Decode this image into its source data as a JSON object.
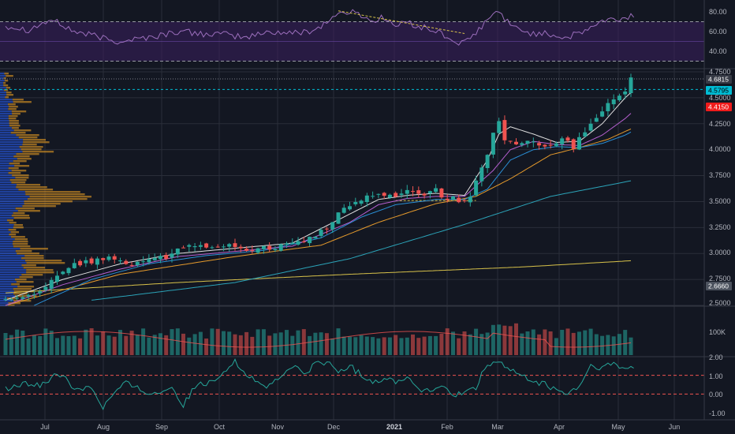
{
  "colors": {
    "background": "#131722",
    "grid": "#2a2e39",
    "up": "#26a69a",
    "down": "#ef5350",
    "rsi_line": "#9c6fbd",
    "rsi_band": "#3b1f5e",
    "profile_blue": "#2962ff",
    "profile_orange": "#f5a623",
    "ma_fast": "#e1e1e1",
    "ma_purple": "#b55fcf",
    "ma_blue": "#2a8fd6",
    "ma_orange": "#e59a2c",
    "ma_teal": "#2ba3b8",
    "ma_yellow": "#d8c24a",
    "osc_line": "#26a69a",
    "level_red": "#ef5350"
  },
  "rsi_panel": {
    "ticks": [
      "80.00",
      "60.00",
      "40.00"
    ],
    "levels": [
      70,
      30
    ]
  },
  "price_axis": {
    "ticks": [
      "4.7500",
      "4.5000",
      "4.2500",
      "4.0000",
      "3.7500",
      "3.5000",
      "3.2500",
      "3.0000",
      "2.7500",
      "2.5000"
    ],
    "badges": [
      {
        "label": "4.6815",
        "color": "#363a45",
        "text_color": "#ffffff"
      },
      {
        "label": "4.5795",
        "color": "#00bcd4",
        "text_color": "#000000"
      },
      {
        "label": "4.4150",
        "color": "#ef1b1b",
        "text_color": "#ffffff"
      },
      {
        "label": "2.6660",
        "color": "#4c525e",
        "text_color": "#ffffff"
      }
    ]
  },
  "volume_panel": {
    "ticks": [
      "100K"
    ]
  },
  "osc_panel": {
    "ticks": [
      "2.00",
      "1.00",
      "0.00",
      "-1.00"
    ],
    "levels": [
      1,
      0
    ]
  },
  "time_axis": {
    "labels": [
      "Jul",
      "Aug",
      "Sep",
      "Oct",
      "Nov",
      "Dec",
      "2021",
      "Feb",
      "Mar",
      "Apr",
      "May",
      "Jun"
    ]
  },
  "chart_data": {
    "type": "candlestick",
    "y_range": [
      2.5,
      4.75
    ],
    "price_path": [
      [
        0,
        2.55
      ],
      [
        4,
        2.6
      ],
      [
        8,
        2.72
      ],
      [
        12,
        2.88
      ],
      [
        16,
        2.93
      ],
      [
        19,
        2.95
      ],
      [
        23,
        2.9
      ],
      [
        27,
        2.95
      ],
      [
        31,
        3.05
      ],
      [
        35,
        3.08
      ],
      [
        39,
        3.08
      ],
      [
        43,
        3.03
      ],
      [
        47,
        3.07
      ],
      [
        51,
        3.1
      ],
      [
        55,
        3.2
      ],
      [
        58,
        3.38
      ],
      [
        61,
        3.48
      ],
      [
        64,
        3.58
      ],
      [
        67,
        3.55
      ],
      [
        69,
        3.55
      ],
      [
        71,
        3.62
      ],
      [
        73,
        3.55
      ],
      [
        75,
        3.62
      ],
      [
        77,
        3.52
      ],
      [
        79,
        3.52
      ],
      [
        81,
        3.55
      ],
      [
        83,
        3.8
      ],
      [
        85,
        4.15
      ],
      [
        86,
        4.3
      ],
      [
        87,
        4.12
      ],
      [
        89,
        4.05
      ],
      [
        91,
        4.1
      ],
      [
        93,
        4.07
      ],
      [
        95,
        4.03
      ],
      [
        97,
        4.12
      ],
      [
        99,
        4.03
      ],
      [
        101,
        4.18
      ],
      [
        103,
        4.3
      ],
      [
        105,
        4.42
      ],
      [
        107,
        4.5
      ],
      [
        108,
        4.58
      ],
      [
        109,
        4.68
      ]
    ],
    "ma_fast_path": [
      [
        0,
        2.55
      ],
      [
        10,
        2.75
      ],
      [
        20,
        2.9
      ],
      [
        30,
        3.0
      ],
      [
        40,
        3.05
      ],
      [
        50,
        3.1
      ],
      [
        60,
        3.38
      ],
      [
        65,
        3.52
      ],
      [
        70,
        3.56
      ],
      [
        75,
        3.58
      ],
      [
        80,
        3.56
      ],
      [
        84,
        3.9
      ],
      [
        86,
        4.15
      ],
      [
        88,
        4.22
      ],
      [
        92,
        4.15
      ],
      [
        96,
        4.07
      ],
      [
        100,
        4.08
      ],
      [
        104,
        4.25
      ],
      [
        108,
        4.5
      ],
      [
        109,
        4.55
      ]
    ],
    "ma_purple_path": [
      [
        0,
        2.5
      ],
      [
        10,
        2.7
      ],
      [
        20,
        2.85
      ],
      [
        30,
        2.97
      ],
      [
        40,
        3.02
      ],
      [
        50,
        3.07
      ],
      [
        60,
        3.3
      ],
      [
        65,
        3.47
      ],
      [
        70,
        3.53
      ],
      [
        75,
        3.55
      ],
      [
        80,
        3.55
      ],
      [
        85,
        3.8
      ],
      [
        88,
        4.0
      ],
      [
        92,
        4.08
      ],
      [
        96,
        4.05
      ],
      [
        100,
        4.04
      ],
      [
        104,
        4.14
      ],
      [
        108,
        4.3
      ],
      [
        109,
        4.35
      ]
    ],
    "ma_blue_path": [
      [
        5,
        2.5
      ],
      [
        15,
        2.75
      ],
      [
        25,
        2.9
      ],
      [
        35,
        2.98
      ],
      [
        45,
        3.03
      ],
      [
        55,
        3.15
      ],
      [
        62,
        3.35
      ],
      [
        68,
        3.47
      ],
      [
        75,
        3.52
      ],
      [
        80,
        3.52
      ],
      [
        84,
        3.62
      ],
      [
        88,
        3.9
      ],
      [
        92,
        4.0
      ],
      [
        96,
        4.03
      ],
      [
        100,
        4.02
      ],
      [
        104,
        4.06
      ],
      [
        108,
        4.14
      ],
      [
        109,
        4.17
      ]
    ],
    "ma_orange_path": [
      [
        0,
        2.5
      ],
      [
        20,
        2.8
      ],
      [
        40,
        2.97
      ],
      [
        55,
        3.08
      ],
      [
        65,
        3.3
      ],
      [
        75,
        3.48
      ],
      [
        82,
        3.55
      ],
      [
        88,
        3.72
      ],
      [
        95,
        3.95
      ],
      [
        100,
        4.02
      ],
      [
        105,
        4.1
      ],
      [
        109,
        4.2
      ]
    ],
    "ma_teal_path": [
      [
        15,
        2.55
      ],
      [
        40,
        2.72
      ],
      [
        60,
        2.95
      ],
      [
        80,
        3.28
      ],
      [
        95,
        3.55
      ],
      [
        109,
        3.7
      ]
    ],
    "ma_yellow_path": [
      [
        0,
        2.62
      ],
      [
        30,
        2.72
      ],
      [
        60,
        2.8
      ],
      [
        90,
        2.87
      ],
      [
        109,
        2.93
      ]
    ],
    "rsi_path": [
      [
        0,
        66
      ],
      [
        4,
        62
      ],
      [
        8,
        72
      ],
      [
        12,
        60
      ],
      [
        16,
        55
      ],
      [
        19,
        50
      ],
      [
        22,
        52
      ],
      [
        26,
        55
      ],
      [
        30,
        60
      ],
      [
        34,
        58
      ],
      [
        38,
        57
      ],
      [
        42,
        54
      ],
      [
        46,
        60
      ],
      [
        50,
        58
      ],
      [
        54,
        62
      ],
      [
        58,
        78
      ],
      [
        60,
        80
      ],
      [
        62,
        77
      ],
      [
        64,
        70
      ],
      [
        66,
        75
      ],
      [
        68,
        65
      ],
      [
        70,
        70
      ],
      [
        72,
        65
      ],
      [
        74,
        62
      ],
      [
        76,
        58
      ],
      [
        78,
        50
      ],
      [
        80,
        48
      ],
      [
        82,
        58
      ],
      [
        84,
        72
      ],
      [
        86,
        81
      ],
      [
        87,
        74
      ],
      [
        88,
        65
      ],
      [
        90,
        62
      ],
      [
        92,
        57
      ],
      [
        94,
        60
      ],
      [
        96,
        55
      ],
      [
        98,
        54
      ],
      [
        100,
        58
      ],
      [
        102,
        64
      ],
      [
        104,
        70
      ],
      [
        106,
        72
      ],
      [
        108,
        73
      ],
      [
        109,
        76
      ]
    ],
    "osc_path": [
      [
        0,
        0.25
      ],
      [
        3,
        0.5
      ],
      [
        6,
        0.5
      ],
      [
        8,
        0.9
      ],
      [
        10,
        1.0
      ],
      [
        12,
        0.3
      ],
      [
        15,
        0.4
      ],
      [
        17,
        -0.7
      ],
      [
        19,
        0.1
      ],
      [
        21,
        0.6
      ],
      [
        23,
        0.3
      ],
      [
        26,
        0.0
      ],
      [
        29,
        0.4
      ],
      [
        31,
        -0.6
      ],
      [
        33,
        0.4
      ],
      [
        36,
        0.6
      ],
      [
        38,
        1.3
      ],
      [
        40,
        1.7
      ],
      [
        42,
        1.1
      ],
      [
        44,
        0.6
      ],
      [
        46,
        0.4
      ],
      [
        48,
        0.9
      ],
      [
        50,
        1.5
      ],
      [
        52,
        1.1
      ],
      [
        54,
        1.6
      ],
      [
        56,
        1.7
      ],
      [
        58,
        1.2
      ],
      [
        60,
        1.5
      ],
      [
        62,
        1.0
      ],
      [
        64,
        0.7
      ],
      [
        66,
        0.8
      ],
      [
        68,
        0.7
      ],
      [
        70,
        0.9
      ],
      [
        72,
        0.3
      ],
      [
        74,
        0.1
      ],
      [
        76,
        0.5
      ],
      [
        78,
        -0.2
      ],
      [
        80,
        0.1
      ],
      [
        82,
        0.4
      ],
      [
        84,
        1.6
      ],
      [
        86,
        1.7
      ],
      [
        88,
        1.3
      ],
      [
        90,
        0.9
      ],
      [
        92,
        0.7
      ],
      [
        94,
        0.5
      ],
      [
        96,
        0.2
      ],
      [
        98,
        0.0
      ],
      [
        100,
        0.4
      ],
      [
        102,
        1.5
      ],
      [
        104,
        1.4
      ],
      [
        106,
        1.6
      ],
      [
        108,
        1.3
      ],
      [
        109,
        1.4
      ]
    ]
  }
}
